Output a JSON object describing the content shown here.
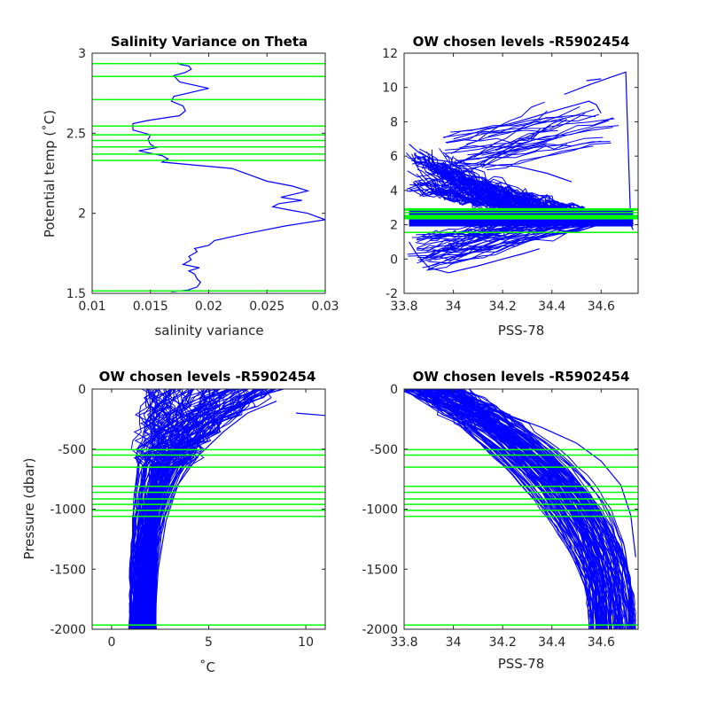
{
  "colors": {
    "profile": "#0000ff",
    "level": "#00ff00",
    "axis": "#262626"
  },
  "panels": [
    {
      "title": "Salinity Variance on Theta",
      "xlabel": "salinity variance",
      "ylabel": "Potential temp (˚C)",
      "xlim": [
        0.01,
        0.03
      ],
      "ylim": [
        1.5,
        3
      ],
      "xticks": [
        "0.01",
        "0.015",
        "0.02",
        "0.025",
        "0.03"
      ],
      "yticks": [
        "1.5",
        "2",
        "2.5",
        "3"
      ]
    },
    {
      "title": "OW chosen levels -R5902454",
      "xlabel": "PSS-78",
      "ylabel": "",
      "xlim": [
        33.8,
        34.75
      ],
      "ylim": [
        -2,
        12
      ],
      "xticks": [
        "33.8",
        "34",
        "34.2",
        "34.4",
        "34.6"
      ],
      "yticks": [
        "-2",
        "0",
        "2",
        "4",
        "6",
        "8",
        "10",
        "12"
      ]
    },
    {
      "title": "OW chosen levels -R5902454",
      "xlabel": "˚C",
      "ylabel": "Pressure (dbar)",
      "xlim": [
        -1,
        11
      ],
      "ylim": [
        -2000,
        0
      ],
      "xticks": [
        "0",
        "5",
        "10"
      ],
      "yticks": [
        "-2000",
        "-1500",
        "-1000",
        "-500",
        "0"
      ]
    },
    {
      "title": "OW chosen levels -R5902454",
      "xlabel": "PSS-78",
      "ylabel": "",
      "xlim": [
        33.8,
        34.75
      ],
      "ylim": [
        -2000,
        0
      ],
      "xticks": [
        "33.8",
        "34",
        "34.2",
        "34.4",
        "34.6"
      ],
      "yticks": [
        "-2000",
        "-1500",
        "-1000",
        "-500",
        "0"
      ]
    }
  ],
  "chart_data": [
    {
      "type": "line",
      "title": "Salinity Variance on Theta",
      "xlabel": "salinity variance",
      "ylabel": "Potential temp (˚C)",
      "xlim": [
        0.01,
        0.03
      ],
      "ylim": [
        1.5,
        3
      ],
      "series": [
        {
          "x": [
            0.0168,
            0.0182,
            0.019,
            0.0193,
            0.019,
            0.0188,
            0.0183,
            0.0192,
            0.0178,
            0.0185,
            0.0183,
            0.019,
            0.0188,
            0.02,
            0.0205,
            0.023,
            0.0265,
            0.03,
            0.0285,
            0.027,
            0.0255,
            0.026,
            0.028,
            0.0262,
            0.0285,
            0.0272,
            0.025,
            0.022,
            0.016,
            0.0165,
            0.016,
            0.014,
            0.0155,
            0.015,
            0.0148,
            0.015,
            0.0135,
            0.0135,
            0.0135,
            0.0148,
            0.0175,
            0.018,
            0.0178,
            0.0168,
            0.017,
            0.02,
            0.0175,
            0.017,
            0.018,
            0.0185,
            0.0183,
            0.0175,
            0.0173
          ],
          "y": [
            1.51,
            1.52,
            1.54,
            1.57,
            1.59,
            1.62,
            1.64,
            1.66,
            1.68,
            1.71,
            1.73,
            1.76,
            1.78,
            1.8,
            1.83,
            1.87,
            1.92,
            1.96,
            2.0,
            2.02,
            2.04,
            2.06,
            2.08,
            2.1,
            2.14,
            2.17,
            2.2,
            2.28,
            2.32,
            2.34,
            2.36,
            2.39,
            2.41,
            2.43,
            2.46,
            2.49,
            2.52,
            2.55,
            2.56,
            2.58,
            2.61,
            2.64,
            2.67,
            2.7,
            2.73,
            2.78,
            2.82,
            2.86,
            2.88,
            2.9,
            2.92,
            2.93,
            2.94
          ]
        }
      ],
      "levels": [
        1.515,
        2.33,
        2.37,
        2.415,
        2.455,
        2.49,
        2.545,
        2.71,
        2.855,
        2.935
      ]
    },
    {
      "type": "line",
      "title": "OW chosen levels -R5902454",
      "xlabel": "PSS-78",
      "ylabel": "",
      "xlim": [
        33.8,
        34.75
      ],
      "ylim": [
        -2,
        12
      ],
      "series": [
        {
          "x": [
            34.45,
            34.56,
            34.64,
            34.7,
            34.72,
            34.73
          ],
          "y": [
            9.6,
            10.2,
            10.6,
            10.9,
            2.0,
            1.7
          ]
        },
        {
          "x": [
            34.54,
            34.6
          ],
          "y": [
            10.4,
            10.5
          ]
        },
        {
          "x": [
            33.82,
            33.85,
            33.9,
            33.98,
            34.1,
            34.2,
            34.28,
            34.35
          ],
          "y": [
            1.0,
            0.3,
            -0.5,
            -0.8,
            -0.4,
            0.0,
            0.3,
            0.6
          ]
        },
        {
          "x": [
            33.82,
            33.86,
            33.92,
            34.02,
            34.14,
            34.26,
            34.38,
            34.48
          ],
          "y": [
            6.7,
            6.2,
            5.8,
            5.6,
            5.5,
            5.4,
            5.0,
            4.5
          ]
        },
        {
          "x": [
            34.0,
            34.12,
            34.26,
            34.4,
            34.5,
            34.55,
            34.58,
            34.6
          ],
          "y": [
            7.0,
            7.5,
            8.0,
            8.6,
            9.0,
            9.2,
            9.0,
            8.5
          ]
        }
      ],
      "levels": [
        1.55,
        2.35,
        2.42,
        2.48,
        2.54,
        2.71,
        2.85,
        2.93
      ]
    },
    {
      "type": "line",
      "title": "OW chosen levels -R5902454",
      "xlabel": "˚C",
      "ylabel": "Pressure (dbar)",
      "xlim": [
        -1,
        11
      ],
      "ylim": [
        -2000,
        0
      ],
      "series": [
        {
          "x": [
            0.9,
            1.4,
            1.8,
            2.2,
            2.8,
            3.5,
            4.5,
            5.5
          ],
          "y": [
            -2000,
            -1500,
            -1100,
            -800,
            -550,
            -350,
            -200,
            -100
          ]
        },
        {
          "x": [
            2.2,
            2.4,
            2.8,
            3.4,
            4.5,
            5.8,
            7.0,
            8.5
          ],
          "y": [
            -2000,
            -1500,
            -1100,
            -800,
            -550,
            -350,
            -200,
            -100
          ]
        },
        {
          "x": [
            9.5,
            11.0
          ],
          "y": [
            -200,
            -220
          ]
        }
      ],
      "levels": [
        -505,
        -550,
        -650,
        -810,
        -860,
        -915,
        -960,
        -1010,
        -1060,
        -1965
      ]
    },
    {
      "type": "line",
      "title": "OW chosen levels -R5902454",
      "xlabel": "PSS-78",
      "ylabel": "",
      "xlim": [
        33.8,
        34.75
      ],
      "ylim": [
        -2000,
        0
      ],
      "series": [
        {
          "x": [
            33.8,
            33.9,
            34.02,
            34.14,
            34.26,
            34.36,
            34.44,
            34.5,
            34.55
          ],
          "y": [
            -20,
            -100,
            -200,
            -320,
            -450,
            -600,
            -800,
            -1050,
            -1400
          ]
        },
        {
          "x": [
            33.85,
            34.02,
            34.2,
            34.36,
            34.5,
            34.6,
            34.68,
            34.72,
            34.74
          ],
          "y": [
            -20,
            -100,
            -200,
            -320,
            -450,
            -600,
            -800,
            -1050,
            -1400
          ]
        }
      ],
      "levels": [
        -505,
        -550,
        -650,
        -810,
        -860,
        -915,
        -960,
        -1010,
        -1060,
        -1965
      ]
    }
  ]
}
